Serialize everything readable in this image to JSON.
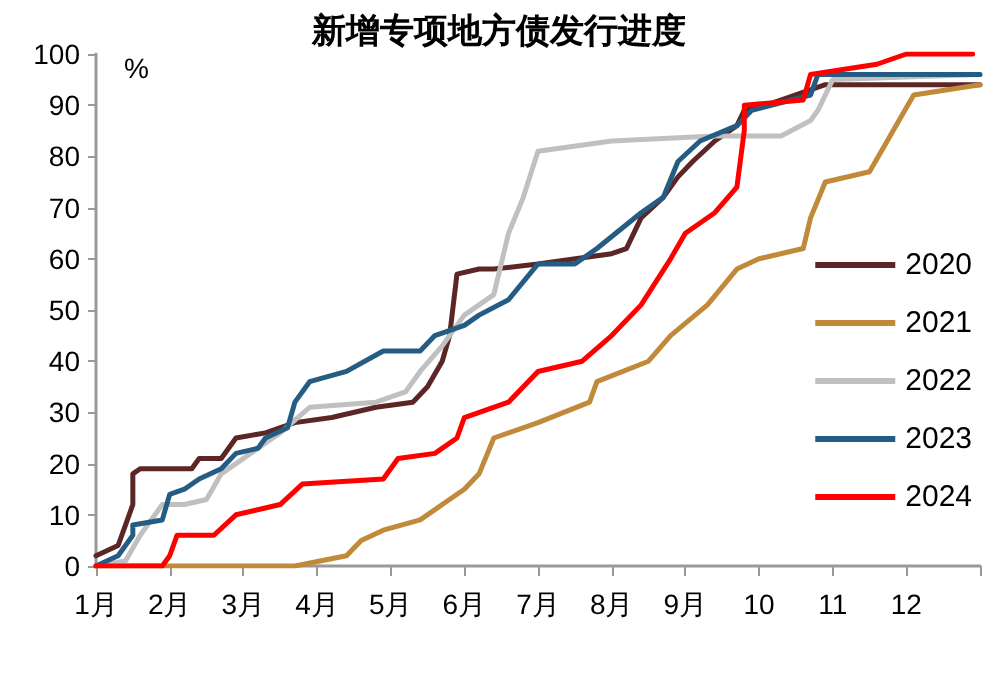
{
  "chart_data": {
    "type": "line",
    "title": "新增专项地方债发行进度",
    "ylabel": "%",
    "xlim": [
      1,
      13
    ],
    "xticks": [
      {
        "value": 1,
        "label": "1月"
      },
      {
        "value": 2,
        "label": "2月"
      },
      {
        "value": 3,
        "label": "3月"
      },
      {
        "value": 4,
        "label": "4月"
      },
      {
        "value": 5,
        "label": "5月"
      },
      {
        "value": 6,
        "label": "6月"
      },
      {
        "value": 7,
        "label": "7月"
      },
      {
        "value": 8,
        "label": "8月"
      },
      {
        "value": 9,
        "label": "9月"
      },
      {
        "value": 10,
        "label": "10"
      },
      {
        "value": 11,
        "label": "11"
      },
      {
        "value": 12,
        "label": "12"
      },
      {
        "value": 13,
        "label": null
      }
    ],
    "ylim": [
      0,
      100
    ],
    "yticks": [
      0,
      10,
      20,
      30,
      40,
      50,
      60,
      70,
      80,
      90,
      100
    ],
    "legend": "right",
    "marker": "none",
    "line_style": "solid",
    "grid": false,
    "series": [
      {
        "name": "2020",
        "color": "#5c2626",
        "x": [
          1,
          1.3,
          1.4,
          1.5,
          1.5,
          1.6,
          2.3,
          2.4,
          2.7,
          2.9,
          3.3,
          3.7,
          4.2,
          4.8,
          5.3,
          5.5,
          5.7,
          5.8,
          5.9,
          6.2,
          6.4,
          7,
          8,
          8.2,
          8.4,
          8.7,
          8.9,
          9.1,
          9.4,
          9.7,
          9.8,
          10.1,
          10.9,
          13
        ],
        "values": [
          2,
          4,
          8,
          12,
          18,
          19,
          19,
          21,
          21,
          25,
          26,
          28,
          29,
          31,
          32,
          35,
          40,
          45,
          57,
          58,
          58,
          59,
          61,
          62,
          68,
          72,
          76,
          79,
          83,
          86,
          89,
          90,
          94,
          94
        ]
      },
      {
        "name": "2021",
        "color": "#c08a3a",
        "x": [
          1,
          3.7,
          4.4,
          4.6,
          4.9,
          5.4,
          5.7,
          6,
          6.2,
          6.4,
          7,
          7.7,
          7.8,
          8.5,
          8.8,
          9.3,
          9.7,
          10,
          10.6,
          10.7,
          10.9,
          11.5,
          11.7,
          11.9,
          12.1,
          13
        ],
        "values": [
          0,
          0,
          2,
          5,
          7,
          9,
          12,
          15,
          18,
          25,
          28,
          32,
          36,
          40,
          45,
          51,
          58,
          60,
          62,
          68,
          75,
          77,
          82,
          87,
          92,
          94
        ]
      },
      {
        "name": "2022",
        "color": "#c0c0c0",
        "x": [
          1,
          1.4,
          1.6,
          1.9,
          2.2,
          2.5,
          2.7,
          3.1,
          3.5,
          3.9,
          4.8,
          5.2,
          5.4,
          5.7,
          6,
          6.4,
          6.6,
          6.8,
          7,
          8,
          9.4,
          10.3,
          10.7,
          10.8,
          11,
          13
        ],
        "values": [
          0,
          1,
          6,
          12,
          12,
          13,
          18,
          22,
          26,
          31,
          32,
          34,
          38,
          43,
          49,
          53,
          65,
          72,
          81,
          83,
          84,
          84,
          87,
          89,
          95,
          96
        ]
      },
      {
        "name": "2023",
        "color": "#255c84",
        "x": [
          1,
          1.3,
          1.5,
          1.5,
          1.9,
          2,
          2.2,
          2.4,
          2.7,
          2.9,
          3.2,
          3.3,
          3.6,
          3.7,
          3.9,
          4.4,
          4.9,
          5.4,
          5.6,
          6,
          6.2,
          6.6,
          7,
          7.5,
          7.8,
          8.4,
          8.7,
          8.9,
          9.2,
          9.7,
          9.9,
          10.7,
          10.8,
          11,
          13
        ],
        "values": [
          0,
          2,
          6,
          8,
          9,
          14,
          15,
          17,
          19,
          22,
          23,
          25,
          27,
          32,
          36,
          38,
          42,
          42,
          45,
          47,
          49,
          52,
          59,
          59,
          62,
          69,
          72,
          79,
          83,
          86,
          89,
          92,
          96,
          96,
          96
        ]
      },
      {
        "name": "2024",
        "color": "#ff0000",
        "x": [
          1,
          1.9,
          2,
          2.1,
          2.6,
          2.9,
          3.5,
          3.8,
          4.9,
          5.1,
          5.6,
          5.9,
          6,
          6.6,
          7,
          7.6,
          8,
          8.4,
          8.8,
          9,
          9.4,
          9.7,
          9.8,
          9.8,
          10.6,
          10.7,
          11.6,
          12,
          12.9
        ],
        "values": [
          0,
          0,
          2,
          6,
          6,
          10,
          12,
          16,
          17,
          21,
          22,
          25,
          29,
          32,
          38,
          40,
          45,
          51,
          60,
          65,
          69,
          74,
          85,
          90,
          91,
          96,
          98,
          100,
          100
        ]
      }
    ]
  }
}
